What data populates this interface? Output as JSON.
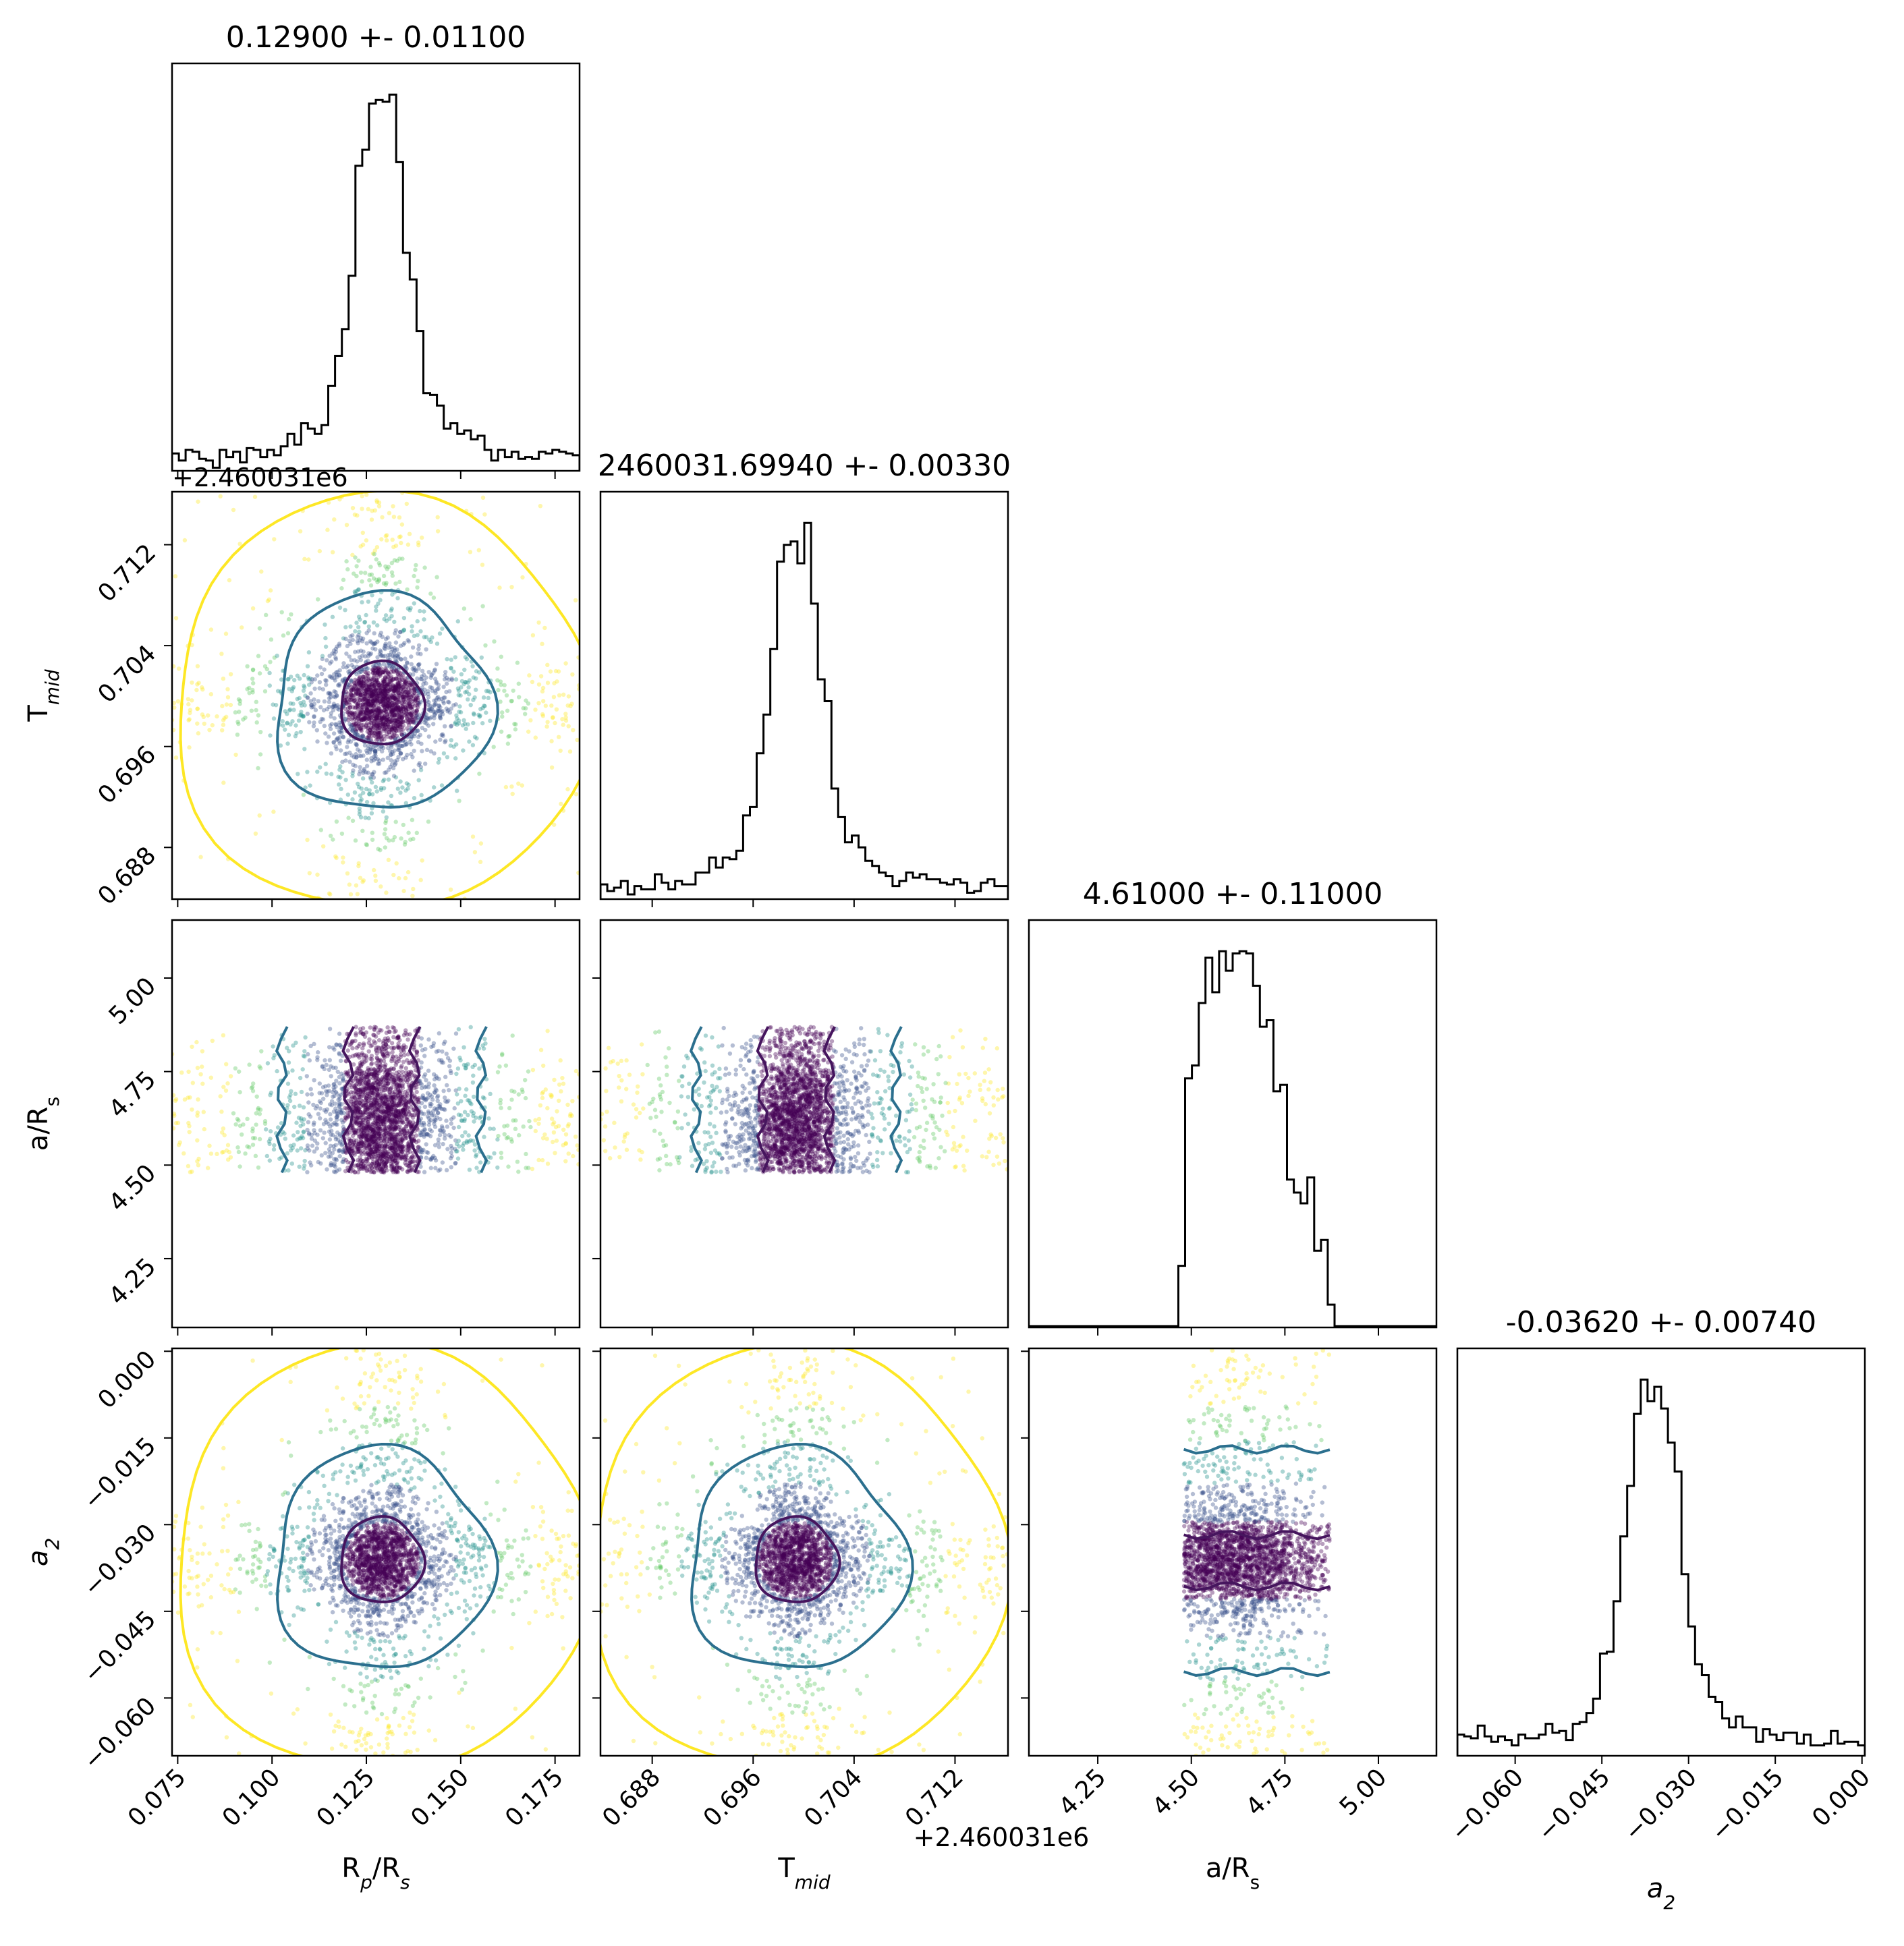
{
  "chart_data": {
    "type": "corner",
    "parameters": [
      {
        "key": "rp",
        "label_main": "R",
        "label_sub": "p",
        "label_main2": "/R",
        "label_sub2": "s",
        "range": [
          0.0735,
          0.1815
        ],
        "ticks": [
          0.075,
          0.1,
          0.125,
          0.15,
          0.175
        ],
        "tick_labels": [
          "0.075",
          "0.100",
          "0.125",
          "0.150",
          "0.175"
        ],
        "offset_text": "",
        "title": "0.12900 +- 0.01100",
        "mean": 0.129,
        "sigma": 0.011
      },
      {
        "key": "tmid",
        "label_main": "T",
        "label_sub": "mid",
        "label_main2": "",
        "label_sub2": "",
        "range": [
          0.6839,
          0.7162
        ],
        "ticks": [
          0.688,
          0.696,
          0.704,
          0.712
        ],
        "tick_labels": [
          "0.688",
          "0.696",
          "0.704",
          "0.712"
        ],
        "offset_text": "+2.460031e6",
        "title": "2460031.69940 +- 0.00330",
        "mean": 0.6994,
        "sigma": 0.0033
      },
      {
        "key": "ars",
        "label_main": "a/R",
        "label_sub": "s",
        "label_main2": "",
        "label_sub2": "",
        "range": [
          4.066,
          5.155
        ],
        "ticks": [
          4.25,
          4.5,
          4.75,
          5.0
        ],
        "tick_labels": [
          "4.25",
          "4.50",
          "4.75",
          "5.00"
        ],
        "offset_text": "",
        "title": "4.61000 +- 0.11000",
        "mean": 4.61,
        "sigma": 0.11
      },
      {
        "key": "a2",
        "label_main": "a",
        "label_sub": "2",
        "label_main2": "",
        "label_sub2": "",
        "label_italic": true,
        "range": [
          -0.07,
          0.0005
        ],
        "ticks": [
          -0.06,
          -0.045,
          -0.03,
          -0.015,
          0.0
        ],
        "tick_labels": [
          "−0.060",
          "−0.045",
          "−0.030",
          "−0.015",
          "0.000"
        ],
        "offset_text": "",
        "title": "-0.03620 +- 0.00740",
        "mean": -0.0362,
        "sigma": 0.0074
      }
    ],
    "ars_prior_range": [
      4.48,
      4.87
    ],
    "colors": {
      "inner_contour": "#46155e",
      "mid_contour": "#2b6f8e",
      "outer_contour": "#fde725",
      "points": [
        "#440154",
        "#3b528b",
        "#21918c",
        "#5ec962",
        "#fde725"
      ],
      "histogram": "#000000"
    }
  }
}
